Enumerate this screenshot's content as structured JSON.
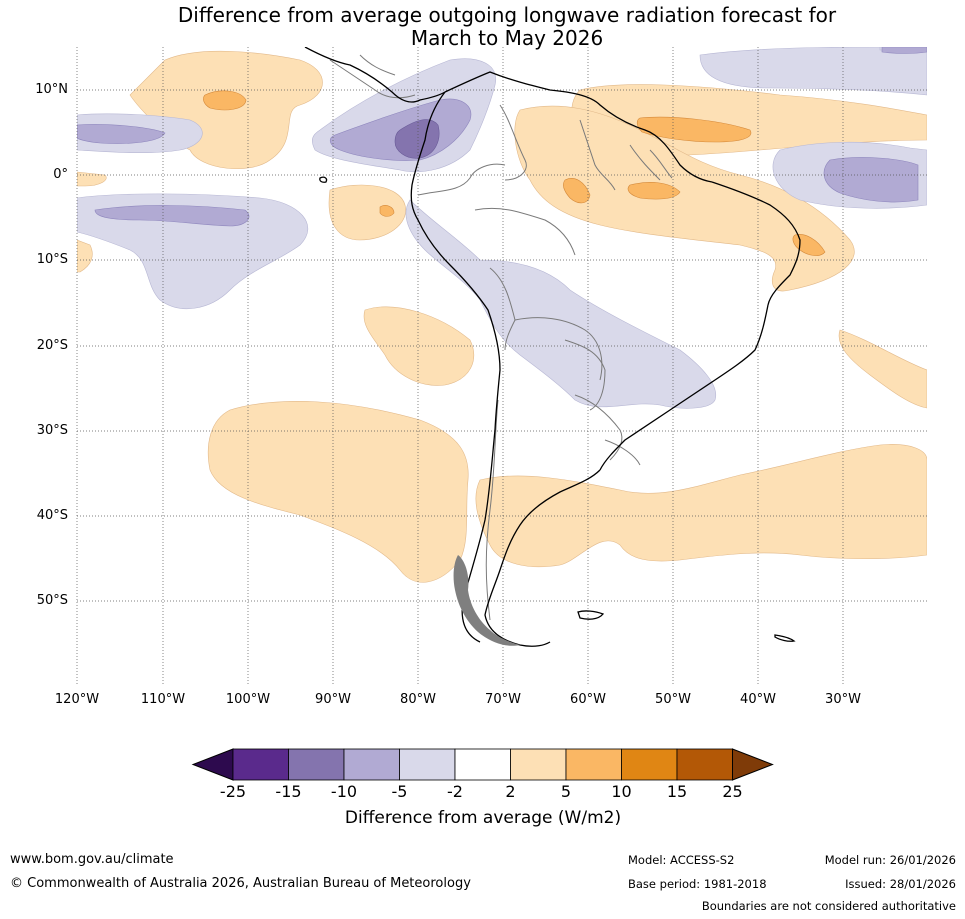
{
  "title": {
    "line1": "Difference from average outgoing longwave radiation forecast for",
    "line2": "March to May 2026"
  },
  "map": {
    "region": "South America",
    "lat_labels": [
      "10°N",
      "0°",
      "10°S",
      "20°S",
      "30°S",
      "40°S",
      "50°S"
    ],
    "lon_labels": [
      "120°W",
      "110°W",
      "100°W",
      "90°W",
      "80°W",
      "70°W",
      "60°W",
      "50°W",
      "40°W",
      "30°W"
    ]
  },
  "colorbar": {
    "ticks": [
      "-25",
      "-15",
      "-10",
      "-5",
      "-2",
      "2",
      "5",
      "10",
      "15",
      "25"
    ],
    "colors": [
      "#2d0a4e",
      "#5a2a8c",
      "#8474ae",
      "#b1aad3",
      "#d9d9ea",
      "#ffffff",
      "#fde0b5",
      "#fab764",
      "#e08614",
      "#b35806",
      "#7f3b08"
    ],
    "title": "Difference from average (W/m2)"
  },
  "footer": {
    "website": "www.bom.gov.au/climate",
    "copyright": "© Commonwealth of Australia 2026, Australian Bureau of Meteorology",
    "model": "Model: ACCESS-S2",
    "base_period": "Base period: 1981-2018",
    "model_run": "Model run: 26/01/2026",
    "issued": "Issued: 28/01/2026",
    "boundaries_note": "Boundaries are not considered authoritative"
  }
}
